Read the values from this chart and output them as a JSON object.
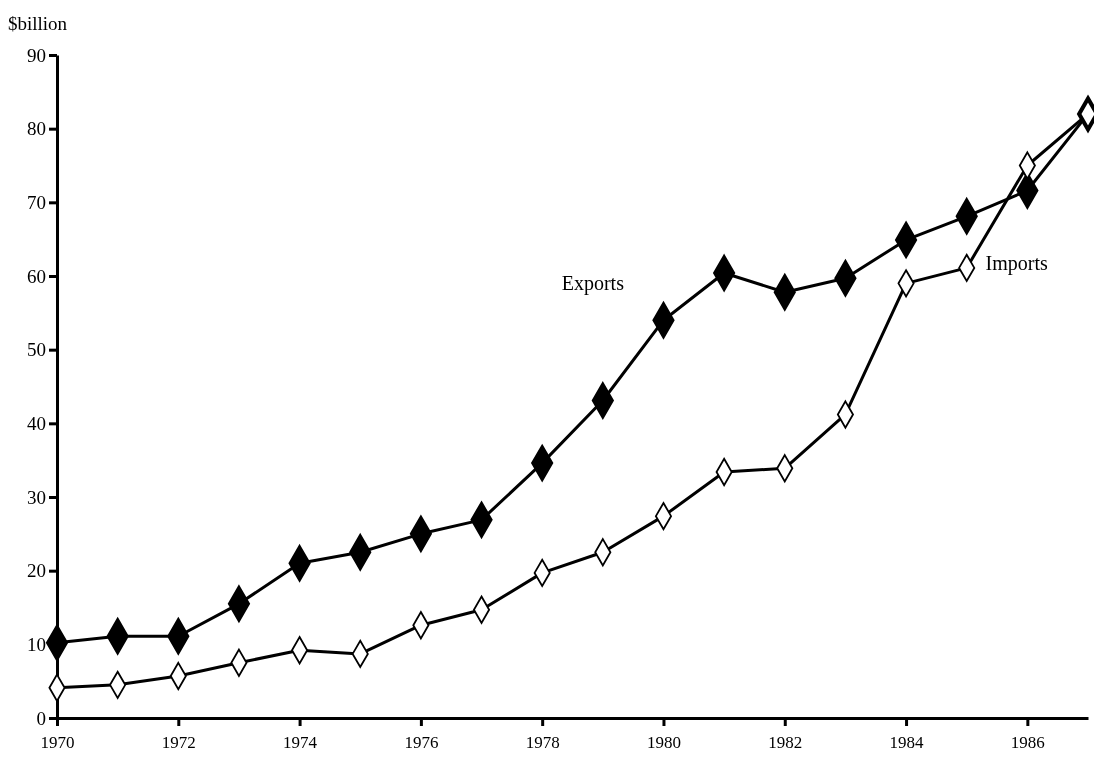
{
  "chart_data": {
    "type": "line",
    "ylabel": "$billion",
    "x": [
      1970,
      1971,
      1972,
      1973,
      1974,
      1975,
      1976,
      1977,
      1978,
      1979,
      1980,
      1981,
      1982,
      1983,
      1984,
      1985,
      1986,
      1987
    ],
    "xlim": [
      1970,
      1987
    ],
    "xticks": [
      1970,
      1972,
      1974,
      1976,
      1978,
      1980,
      1982,
      1984,
      1986
    ],
    "ylim": [
      0,
      90
    ],
    "yticks": [
      0,
      10,
      20,
      30,
      40,
      50,
      60,
      70,
      80,
      90
    ],
    "marker": "diamond",
    "line_style": "solid",
    "grid": false,
    "legend": false,
    "series": [
      {
        "name": "Exports",
        "color": "#000000",
        "values": [
          10.2,
          11.1,
          11.1,
          15.5,
          21.0,
          22.5,
          25.0,
          26.9,
          34.6,
          43.1,
          54.0,
          60.4,
          57.8,
          59.7,
          64.9,
          68.1,
          71.6,
          82
        ]
      },
      {
        "name": "Imports",
        "color": "#000000",
        "values": [
          4.1,
          4.5,
          5.7,
          7.5,
          9.2,
          8.7,
          12.6,
          14.7,
          19.7,
          22.5,
          27.4,
          33.4,
          33.9,
          41.2,
          59.0,
          61.1,
          75.0,
          82
        ]
      }
    ]
  }
}
